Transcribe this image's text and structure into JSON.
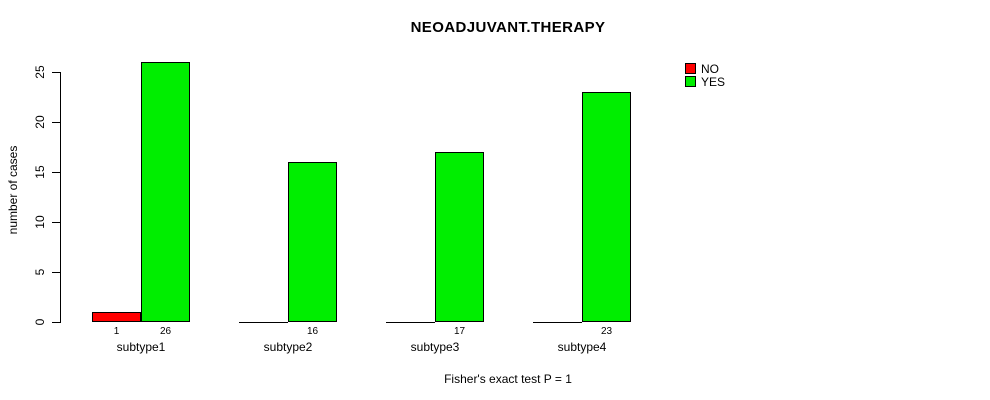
{
  "chart_data": {
    "type": "bar",
    "title": "NEOADJUVANT.THERAPY",
    "xlabel": "Fisher's exact test P = 1",
    "ylabel": "number of cases",
    "categories": [
      "subtype1",
      "subtype2",
      "subtype3",
      "subtype4"
    ],
    "series": [
      {
        "name": "NO",
        "color": "#ff0000",
        "values": [
          1,
          0,
          0,
          0
        ]
      },
      {
        "name": "YES",
        "color": "#00ee00",
        "values": [
          26,
          16,
          17,
          23
        ]
      }
    ],
    "yticks": [
      0,
      5,
      10,
      15,
      20,
      25
    ],
    "ylim": [
      0,
      25
    ],
    "grid": false,
    "legend_position": "top-right",
    "bar_value_labels": [
      [
        "1",
        "26"
      ],
      [
        "",
        "16"
      ],
      [
        "",
        "17"
      ],
      [
        "",
        "23"
      ]
    ],
    "background_color": "#ffffff",
    "axis_color": "#000000"
  }
}
